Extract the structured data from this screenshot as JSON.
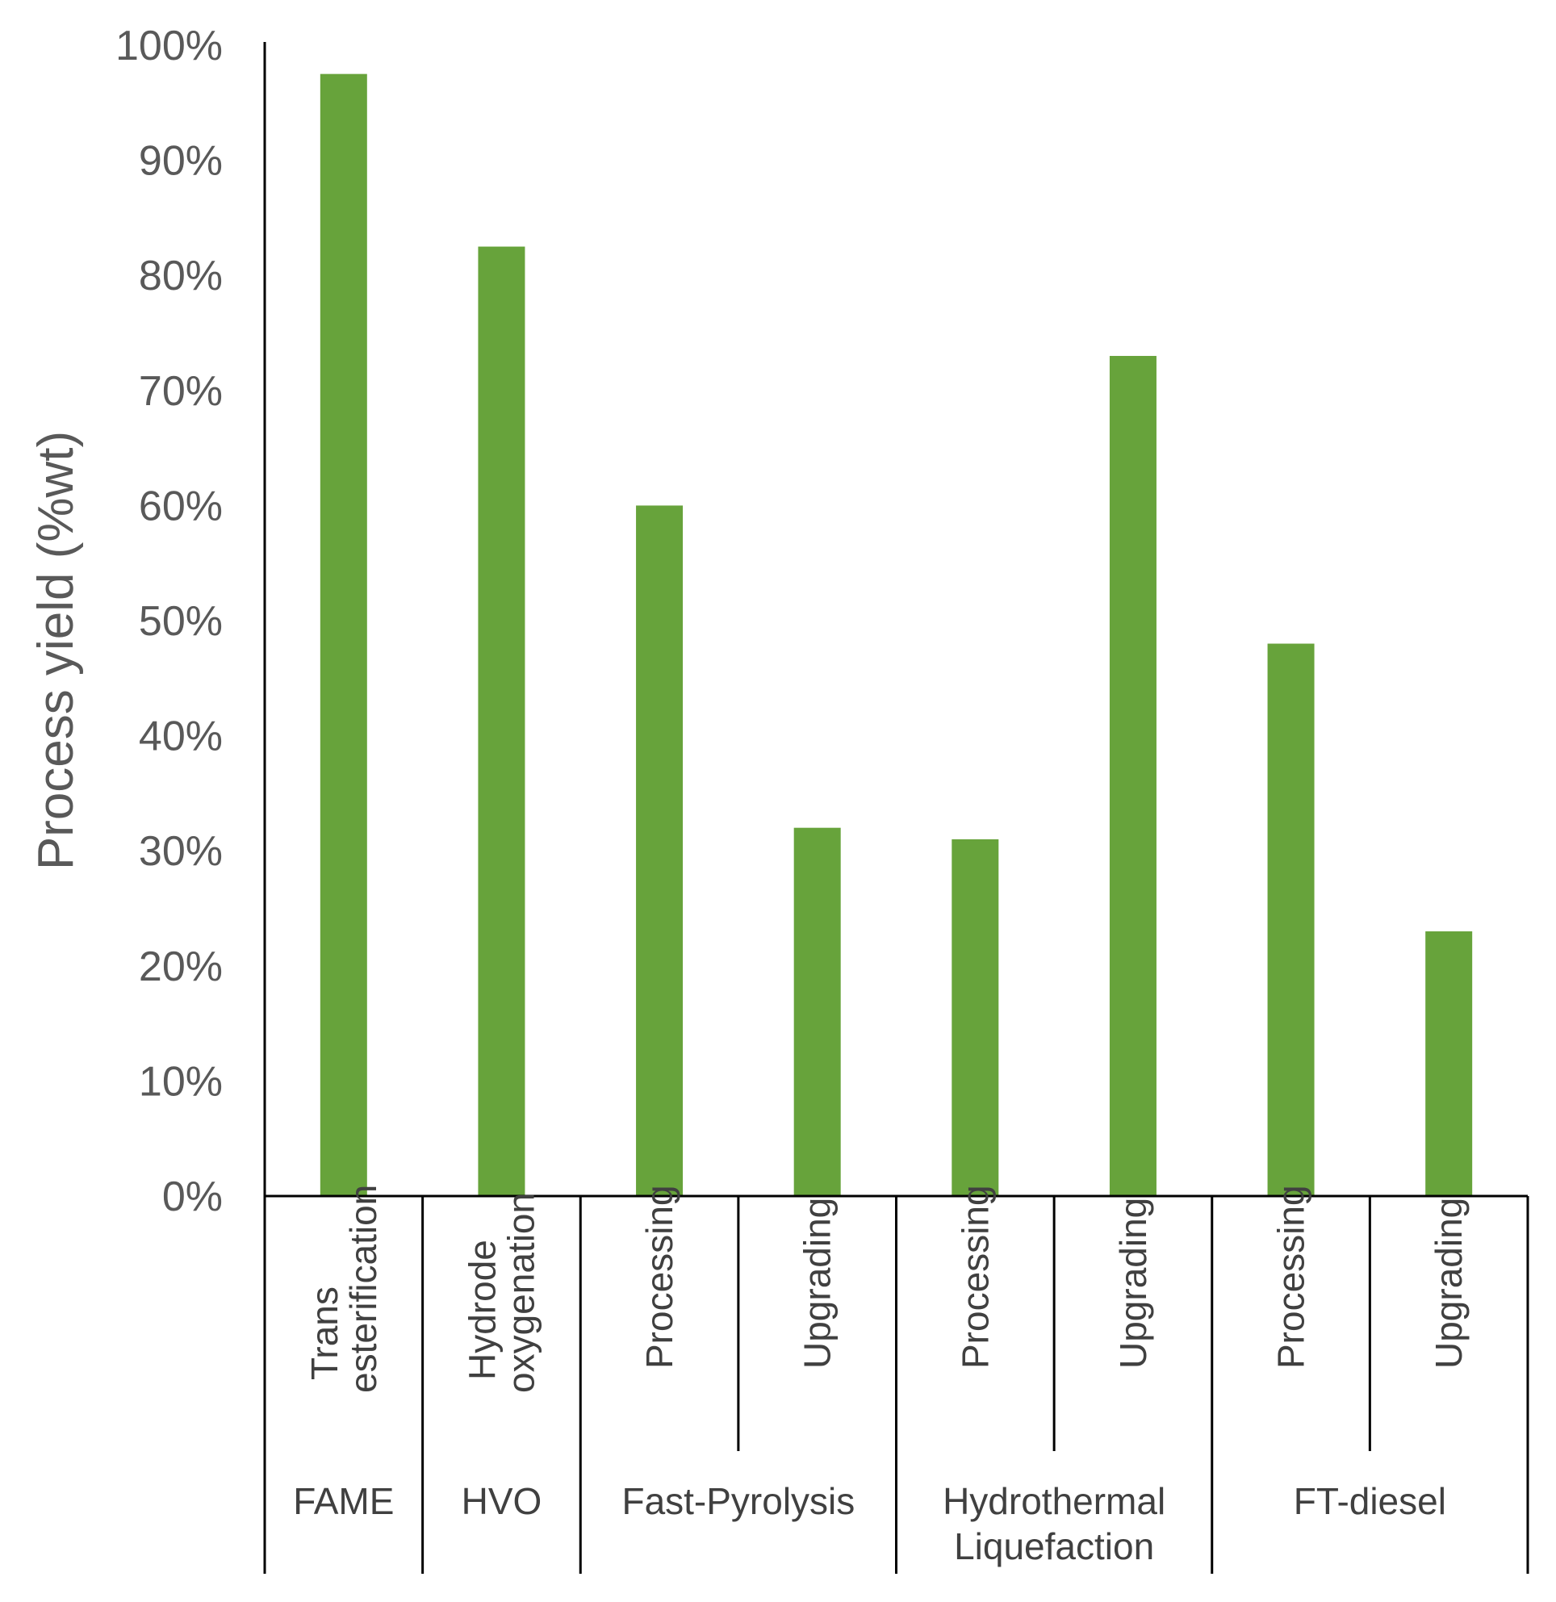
{
  "chart_data": {
    "type": "bar",
    "ylabel": "Process yield (%wt)",
    "xlabel": "",
    "ylim": [
      0,
      100
    ],
    "y_ticks": [
      "0%",
      "10%",
      "20%",
      "30%",
      "40%",
      "50%",
      "60%",
      "70%",
      "80%",
      "90%",
      "100%"
    ],
    "grid": false,
    "legend": "none",
    "bar_color": "#67A33B",
    "categories": [
      {
        "lines": [
          "Trans",
          "esterification"
        ],
        "group": "FAME"
      },
      {
        "lines": [
          "Hydrode",
          "oxygenation"
        ],
        "group": "HVO"
      },
      {
        "lines": [
          "Processing"
        ],
        "group": "Fast-Pyrolysis"
      },
      {
        "lines": [
          "Upgrading"
        ],
        "group": "Fast-Pyrolysis"
      },
      {
        "lines": [
          "Processing"
        ],
        "group": "Hydrothermal Liquefaction"
      },
      {
        "lines": [
          "Upgrading"
        ],
        "group": "Hydrothermal Liquefaction"
      },
      {
        "lines": [
          "Processing"
        ],
        "group": "FT-diesel"
      },
      {
        "lines": [
          "Upgrading"
        ],
        "group": "FT-diesel"
      }
    ],
    "values": [
      97.5,
      82.5,
      60,
      32,
      31,
      73,
      48,
      23
    ],
    "groups": [
      {
        "lines": [
          "FAME"
        ],
        "span": 1
      },
      {
        "lines": [
          "HVO"
        ],
        "span": 1
      },
      {
        "lines": [
          "Fast-Pyrolysis"
        ],
        "span": 2
      },
      {
        "lines": [
          "Hydrothermal",
          "Liquefaction"
        ],
        "span": 2
      },
      {
        "lines": [
          "FT-diesel"
        ],
        "span": 2
      }
    ]
  }
}
